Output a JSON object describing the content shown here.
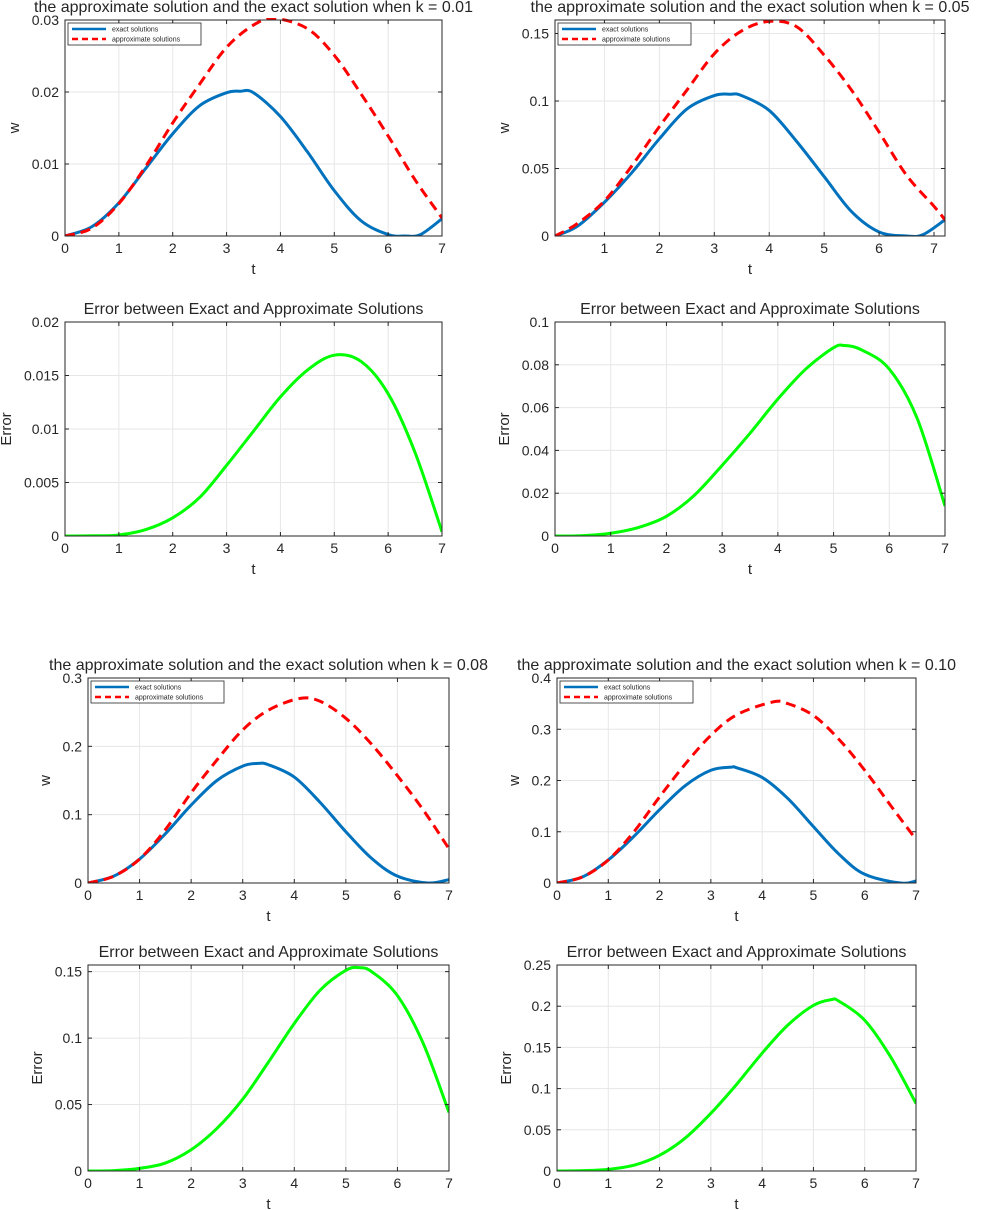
{
  "colors": {
    "exact": "#0072BD",
    "approx": "#FF0000",
    "error": "#00FF00",
    "grid": "#E6E6E6",
    "axis": "#262626"
  },
  "chart_data": [
    {
      "id": "sol-k001",
      "type": "line",
      "title": "the approximate solution and the exact solution when k = 0.01",
      "xlabel": "t",
      "ylabel": "w",
      "xlim": [
        0,
        7
      ],
      "ylim": [
        0,
        0.03
      ],
      "xticks": [
        0,
        1,
        2,
        3,
        4,
        5,
        6,
        7
      ],
      "xtick_labels": [
        "0",
        "1",
        "2",
        "3",
        "4",
        "5",
        "6",
        "7"
      ],
      "yticks": [
        0,
        0.01,
        0.02,
        0.03
      ],
      "ytick_labels": [
        "0",
        "0.01",
        "0.02",
        "0.03"
      ],
      "grid": true,
      "legend": "top-left",
      "series": [
        {
          "name": "exact solutions",
          "style": "solid",
          "color": "#0072BD",
          "x": [
            0,
            0.5,
            1,
            1.5,
            2,
            2.5,
            3,
            3.25,
            3.5,
            4,
            4.5,
            5,
            5.5,
            6,
            6.3,
            6.6,
            7
          ],
          "y": [
            0,
            0.0013,
            0.0046,
            0.0094,
            0.0142,
            0.0181,
            0.0199,
            0.0201,
            0.0199,
            0.0166,
            0.0117,
            0.0063,
            0.0021,
            0.0002,
            0,
            0.0002,
            0.0024
          ]
        },
        {
          "name": "approximate solutions",
          "style": "dashed",
          "color": "#FF0000",
          "x": [
            0,
            0.5,
            1,
            1.5,
            2,
            2.5,
            3,
            3.5,
            3.9,
            4.5,
            5,
            5.5,
            6,
            6.5,
            7
          ],
          "y": [
            0,
            0.0011,
            0.0045,
            0.0097,
            0.0157,
            0.0211,
            0.0262,
            0.0293,
            0.0302,
            0.0288,
            0.0251,
            0.0197,
            0.0139,
            0.0078,
            0.0025
          ]
        }
      ]
    },
    {
      "id": "sol-k005",
      "type": "line",
      "title": "the approximate solution and the exact solution when k = 0.05",
      "xlabel": "t",
      "ylabel": "w",
      "xlim": [
        0.1,
        7.2
      ],
      "ylim": [
        0,
        0.16
      ],
      "xticks": [
        1,
        2,
        3,
        4,
        5,
        6,
        7
      ],
      "xtick_labels": [
        "1",
        "2",
        "3",
        "4",
        "5",
        "6",
        "7"
      ],
      "yticks": [
        0,
        0.05,
        0.1,
        0.15
      ],
      "ytick_labels": [
        "0",
        "0.05",
        "0.1",
        "0.15"
      ],
      "grid": true,
      "legend": "top-left",
      "series": [
        {
          "name": "exact solutions",
          "style": "solid",
          "color": "#0072BD",
          "x": [
            0.1,
            0.5,
            1,
            1.5,
            2,
            2.5,
            3,
            3.3,
            3.5,
            4,
            4.5,
            5,
            5.5,
            6,
            6.5,
            6.8,
            7.2
          ],
          "y": [
            0,
            0.007,
            0.025,
            0.047,
            0.072,
            0.094,
            0.104,
            0.105,
            0.104,
            0.093,
            0.07,
            0.044,
            0.018,
            0.003,
            0,
            0.001,
            0.012
          ]
        },
        {
          "name": "approximate solutions",
          "style": "dashed",
          "color": "#FF0000",
          "x": [
            0.1,
            0.5,
            1,
            1.5,
            2,
            2.5,
            3,
            3.5,
            4,
            4.5,
            5,
            5.5,
            6,
            6.5,
            7,
            7.2
          ],
          "y": [
            0,
            0.009,
            0.026,
            0.052,
            0.081,
            0.108,
            0.135,
            0.152,
            0.159,
            0.155,
            0.134,
            0.108,
            0.077,
            0.045,
            0.022,
            0.012
          ]
        }
      ]
    },
    {
      "id": "err-k001",
      "type": "line",
      "title": "Error between Exact and Approximate Solutions",
      "xlabel": "t",
      "ylabel": "Error",
      "xlim": [
        0,
        7
      ],
      "ylim": [
        0,
        0.02
      ],
      "xticks": [
        0,
        1,
        2,
        3,
        4,
        5,
        6,
        7
      ],
      "xtick_labels": [
        "0",
        "1",
        "2",
        "3",
        "4",
        "5",
        "6",
        "7"
      ],
      "yticks": [
        0,
        0.005,
        0.01,
        0.015,
        0.02
      ],
      "ytick_labels": [
        "0",
        "0.005",
        "0.01",
        "0.015",
        "0.02"
      ],
      "grid": true,
      "series": [
        {
          "name": "error",
          "style": "solid",
          "color": "#00FF00",
          "x": [
            0,
            0.5,
            1,
            1.5,
            2,
            2.5,
            3,
            3.5,
            4,
            4.5,
            5,
            5.5,
            6,
            6.5,
            7
          ],
          "y": [
            0,
            2e-05,
            0.0001,
            0.0006,
            0.0017,
            0.0036,
            0.0066,
            0.0098,
            0.013,
            0.0155,
            0.0169,
            0.0163,
            0.0133,
            0.0078,
            0.0004
          ]
        }
      ]
    },
    {
      "id": "err-k005",
      "type": "line",
      "title": "Error between Exact and Approximate Solutions",
      "xlabel": "t",
      "ylabel": "Error",
      "xlim": [
        0,
        7
      ],
      "ylim": [
        0,
        0.1
      ],
      "xticks": [
        0,
        1,
        2,
        3,
        4,
        5,
        6,
        7
      ],
      "xtick_labels": [
        "0",
        "1",
        "2",
        "3",
        "4",
        "5",
        "6",
        "7"
      ],
      "yticks": [
        0,
        0.02,
        0.04,
        0.06,
        0.08,
        0.1
      ],
      "ytick_labels": [
        "0",
        "0.02",
        "0.04",
        "0.06",
        "0.08",
        "0.1"
      ],
      "grid": true,
      "series": [
        {
          "name": "error",
          "style": "solid",
          "color": "#00FF00",
          "x": [
            0,
            0.5,
            1,
            1.5,
            2,
            2.5,
            3,
            3.5,
            4,
            4.5,
            5,
            5.2,
            5.5,
            6,
            6.5,
            7
          ],
          "y": [
            0,
            0.0002,
            0.0013,
            0.004,
            0.0092,
            0.019,
            0.033,
            0.048,
            0.064,
            0.078,
            0.088,
            0.089,
            0.087,
            0.078,
            0.055,
            0.014
          ]
        }
      ]
    },
    {
      "id": "sol-k008",
      "type": "line",
      "title": "the approximate solution and the exact solution when k = 0.08",
      "xlabel": "t",
      "ylabel": "w",
      "xlim": [
        0,
        7
      ],
      "ylim": [
        0,
        0.3
      ],
      "xticks": [
        0,
        1,
        2,
        3,
        4,
        5,
        6,
        7
      ],
      "xtick_labels": [
        "0",
        "1",
        "2",
        "3",
        "4",
        "5",
        "6",
        "7"
      ],
      "yticks": [
        0,
        0.1,
        0.2,
        0.3
      ],
      "ytick_labels": [
        "0",
        "0.1",
        "0.2",
        "0.3"
      ],
      "grid": true,
      "legend": "top-left",
      "series": [
        {
          "name": "exact solutions",
          "style": "solid",
          "color": "#0072BD",
          "x": [
            0,
            0.5,
            1,
            1.5,
            2,
            2.5,
            3,
            3.3,
            3.5,
            4,
            4.5,
            5,
            5.5,
            6,
            6.6,
            7
          ],
          "y": [
            0,
            0.01,
            0.035,
            0.072,
            0.114,
            0.15,
            0.171,
            0.175,
            0.173,
            0.155,
            0.118,
            0.075,
            0.036,
            0.01,
            0,
            0.005
          ]
        },
        {
          "name": "approximate solutions",
          "style": "dashed",
          "color": "#FF0000",
          "x": [
            0,
            0.5,
            1,
            1.5,
            2,
            2.5,
            3,
            3.5,
            4.1,
            4.5,
            5,
            5.5,
            6,
            6.5,
            7
          ],
          "y": [
            0,
            0.01,
            0.035,
            0.078,
            0.132,
            0.18,
            0.224,
            0.253,
            0.27,
            0.266,
            0.241,
            0.203,
            0.157,
            0.107,
            0.05
          ]
        }
      ]
    },
    {
      "id": "sol-k010",
      "type": "line",
      "title": "the approximate solution and the exact solution when k = 0.10",
      "xlabel": "t",
      "ylabel": "w",
      "xlim": [
        0,
        7
      ],
      "ylim": [
        0,
        0.4
      ],
      "xticks": [
        0,
        1,
        2,
        3,
        4,
        5,
        6,
        7
      ],
      "xtick_labels": [
        "0",
        "1",
        "2",
        "3",
        "4",
        "5",
        "6",
        "7"
      ],
      "yticks": [
        0,
        0.1,
        0.2,
        0.3,
        0.4
      ],
      "ytick_labels": [
        "0",
        "0.1",
        "0.2",
        "0.3",
        "0.4"
      ],
      "grid": true,
      "legend": "top-left",
      "series": [
        {
          "name": "exact solutions",
          "style": "solid",
          "color": "#0072BD",
          "x": [
            0,
            0.5,
            1,
            1.5,
            2,
            2.5,
            3,
            3.4,
            3.5,
            4,
            4.5,
            5,
            5.5,
            6,
            6.7,
            7
          ],
          "y": [
            0,
            0.012,
            0.045,
            0.091,
            0.143,
            0.19,
            0.22,
            0.226,
            0.225,
            0.206,
            0.165,
            0.11,
            0.056,
            0.017,
            0,
            0.004
          ]
        },
        {
          "name": "approximate solutions",
          "style": "dashed",
          "color": "#FF0000",
          "x": [
            0,
            0.5,
            1,
            1.5,
            2,
            2.5,
            3,
            3.5,
            4.2,
            4.5,
            5,
            5.5,
            6,
            6.5,
            7
          ],
          "y": [
            0,
            0.012,
            0.045,
            0.1,
            0.168,
            0.232,
            0.288,
            0.328,
            0.353,
            0.35,
            0.327,
            0.28,
            0.22,
            0.152,
            0.085
          ]
        }
      ]
    },
    {
      "id": "err-k008",
      "type": "line",
      "title": "Error between Exact and Approximate Solutions",
      "xlabel": "t",
      "ylabel": "Error",
      "xlim": [
        0,
        7
      ],
      "ylim": [
        0,
        0.155
      ],
      "xticks": [
        0,
        1,
        2,
        3,
        4,
        5,
        6,
        7
      ],
      "xtick_labels": [
        "0",
        "1",
        "2",
        "3",
        "4",
        "5",
        "6",
        "7"
      ],
      "yticks": [
        0,
        0.05,
        0.1,
        0.15
      ],
      "ytick_labels": [
        "0",
        "0.05",
        "0.1",
        "0.15"
      ],
      "grid": true,
      "series": [
        {
          "name": "error",
          "style": "solid",
          "color": "#00FF00",
          "x": [
            0,
            0.5,
            1,
            1.5,
            2,
            2.5,
            3,
            3.5,
            4,
            4.5,
            5,
            5.25,
            5.5,
            6,
            6.5,
            7
          ],
          "y": [
            0,
            0.0003,
            0.002,
            0.006,
            0.016,
            0.032,
            0.054,
            0.082,
            0.111,
            0.136,
            0.151,
            0.153,
            0.15,
            0.132,
            0.096,
            0.044
          ]
        }
      ]
    },
    {
      "id": "err-k010",
      "type": "line",
      "title": "Error between Exact and Approximate Solutions",
      "xlabel": "t",
      "ylabel": "Error",
      "xlim": [
        0,
        7
      ],
      "ylim": [
        0,
        0.25
      ],
      "xticks": [
        0,
        1,
        2,
        3,
        4,
        5,
        6,
        7
      ],
      "xtick_labels": [
        "0",
        "1",
        "2",
        "3",
        "4",
        "5",
        "6",
        "7"
      ],
      "yticks": [
        0,
        0.05,
        0.1,
        0.15,
        0.2,
        0.25
      ],
      "ytick_labels": [
        "0",
        "0.05",
        "0.1",
        "0.15",
        "0.2",
        "0.25"
      ],
      "grid": true,
      "series": [
        {
          "name": "error",
          "style": "solid",
          "color": "#00FF00",
          "x": [
            0,
            0.5,
            1,
            1.5,
            2,
            2.5,
            3,
            3.5,
            4,
            4.5,
            5,
            5.35,
            5.5,
            6,
            6.5,
            7
          ],
          "y": [
            0,
            0.0004,
            0.002,
            0.007,
            0.019,
            0.04,
            0.07,
            0.105,
            0.143,
            0.177,
            0.201,
            0.208,
            0.206,
            0.183,
            0.139,
            0.082
          ]
        }
      ]
    }
  ]
}
